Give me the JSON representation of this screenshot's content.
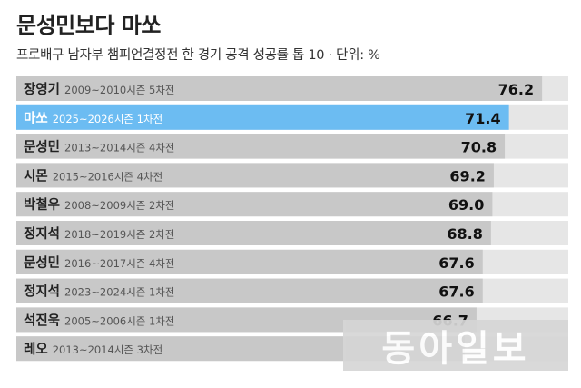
{
  "title": "문성민보다 마쏘",
  "subtitle": "프로배구 남자부 챔피언결정전 한 경기 공격 성공률 톱 10 · 단위: %",
  "watermark": "동아일보",
  "colors": {
    "bar": "#c8c8c8",
    "highlight": "#6cbcf2",
    "track": "#e6e6e6"
  },
  "chart_data": {
    "type": "bar",
    "orientation": "horizontal",
    "xlim": [
      0,
      80
    ],
    "categories": [
      "장영기",
      "마쏘",
      "문성민",
      "시몬",
      "박철우",
      "정지석",
      "문성민",
      "정지석",
      "석진욱",
      "레오"
    ],
    "details": [
      "2009~2010시즌 5차전",
      "2025~2026시즌 1차전",
      "2013~2014시즌 4차전",
      "2015~2016시즌 4차전",
      "2008~2009시즌 2차전",
      "2018~2019시즌 2차전",
      "2016~2017시즌 4차전",
      "2023~2024시즌 1차전",
      "2005~2006시즌 1차전",
      "2013~2014시즌 3차전"
    ],
    "values": [
      76.2,
      71.4,
      70.8,
      69.2,
      69.0,
      68.8,
      67.6,
      67.6,
      66.7,
      65.0
    ],
    "value_labels": [
      "76.2",
      "71.4",
      "70.8",
      "69.2",
      "69.0",
      "68.8",
      "67.6",
      "67.6",
      "66.7",
      ""
    ],
    "highlight_index": 1
  }
}
